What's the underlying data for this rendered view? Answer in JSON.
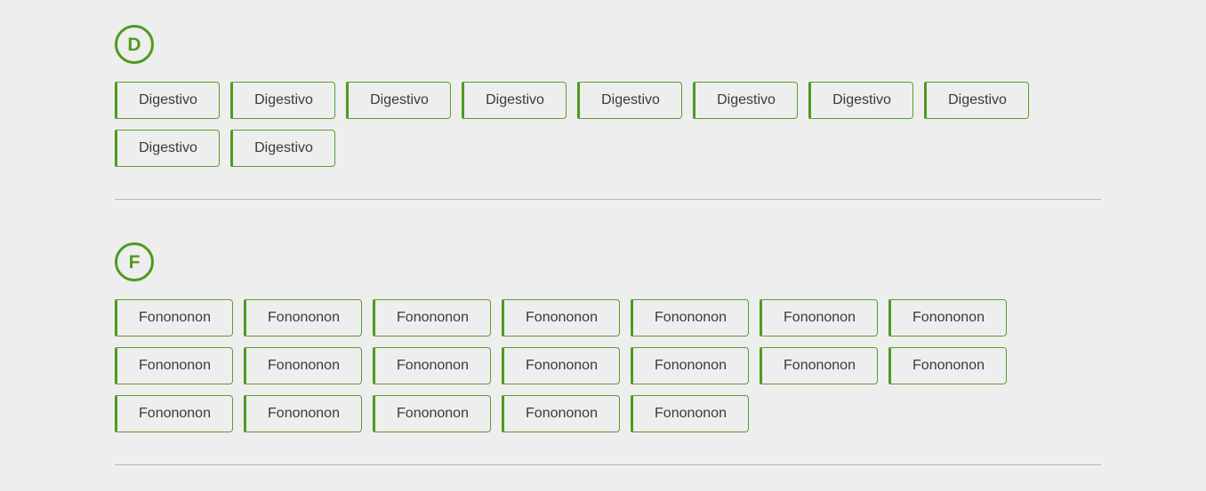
{
  "sections": [
    {
      "letter": "D",
      "items": [
        "Digestivo",
        "Digestivo",
        "Digestivo",
        "Digestivo",
        "Digestivo",
        "Digestivo",
        "Digestivo",
        "Digestivo",
        "Digestivo",
        "Digestivo"
      ]
    },
    {
      "letter": "F",
      "items": [
        "Fonononon",
        "Fonononon",
        "Fonononon",
        "Fonononon",
        "Fonononon",
        "Fonononon",
        "Fonononon",
        "Fonononon",
        "Fonononon",
        "Fonononon",
        "Fonononon",
        "Fonononon",
        "Fonononon",
        "Fonononon",
        "Fonononon",
        "Fonononon",
        "Fonononon",
        "Fonononon",
        "Fonononon"
      ]
    }
  ],
  "colors": {
    "accent": "#4f9a1d",
    "background": "#eeeeee",
    "divider": "#b8b8b8",
    "text": "#3a3a3a"
  }
}
